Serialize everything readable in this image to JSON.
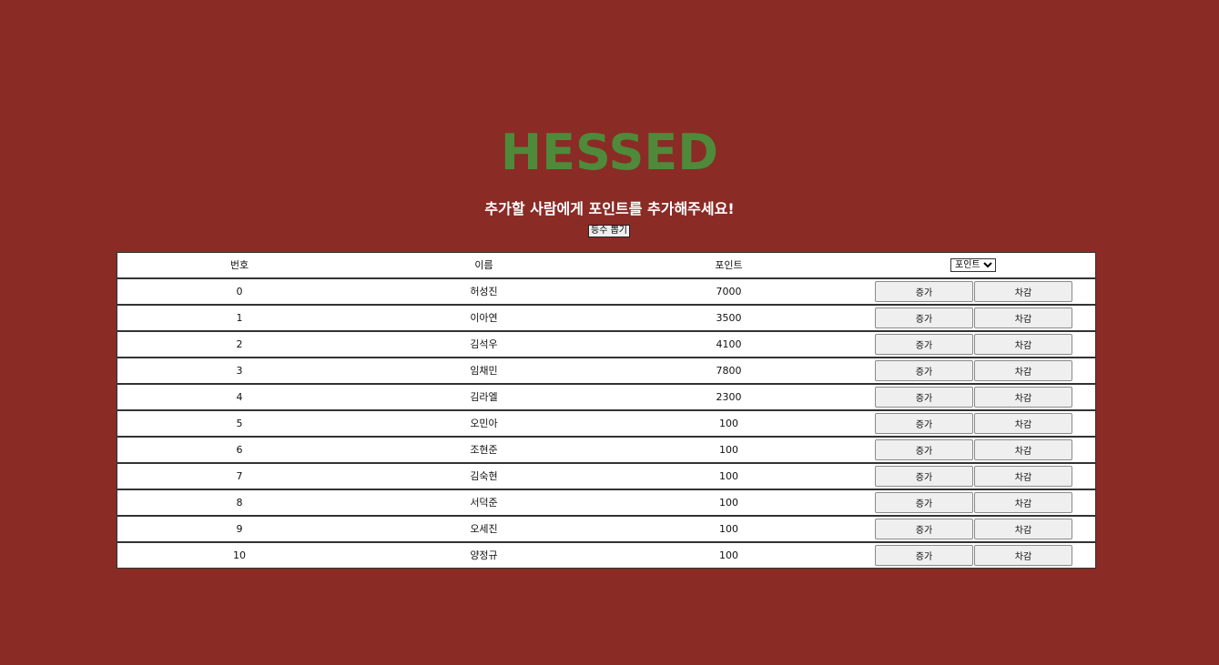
{
  "header": {
    "logo_text": "HESSED",
    "subtitle": "추가할 사람에게 포인트를 추가해주세요!",
    "rank_button_label": "등수 뽑기"
  },
  "table": {
    "columns": {
      "number": "번호",
      "name": "이름",
      "points": "포인트"
    },
    "sort_select": {
      "selected": "포인트",
      "options": [
        "포인트"
      ]
    },
    "increase_label": "증가",
    "decrease_label": "차감",
    "rows": [
      {
        "number": "0",
        "name": "허성진",
        "points": "7000"
      },
      {
        "number": "1",
        "name": "이아연",
        "points": "3500"
      },
      {
        "number": "2",
        "name": "김석우",
        "points": "4100"
      },
      {
        "number": "3",
        "name": "임채민",
        "points": "7800"
      },
      {
        "number": "4",
        "name": "김라엘",
        "points": "2300"
      },
      {
        "number": "5",
        "name": "오민아",
        "points": "100"
      },
      {
        "number": "6",
        "name": "조현준",
        "points": "100"
      },
      {
        "number": "7",
        "name": "김숙현",
        "points": "100"
      },
      {
        "number": "8",
        "name": "서덕준",
        "points": "100"
      },
      {
        "number": "9",
        "name": "오세진",
        "points": "100"
      },
      {
        "number": "10",
        "name": "양정규",
        "points": "100"
      }
    ]
  },
  "colors": {
    "background": "#8a2b26",
    "logo": "#4e8a3a"
  }
}
